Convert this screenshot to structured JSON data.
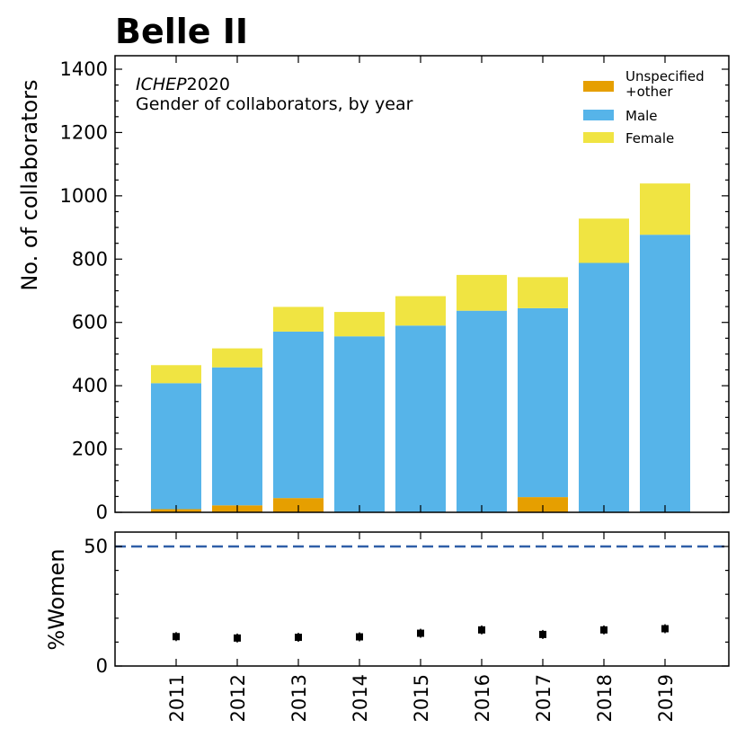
{
  "chart_data": [
    {
      "type": "bar",
      "stacked": true,
      "title": "Belle II",
      "annotation_italic": "ICHEP",
      "annotation_year": "2020",
      "subtitle": "Gender of collaborators, by year",
      "xlabel": "",
      "ylabel": "No. of collaborators",
      "ylim": [
        0,
        1450
      ],
      "yticks": [
        "0",
        "200",
        "400",
        "600",
        "800",
        "1000",
        "1200",
        "1400"
      ],
      "categories": [
        "2011",
        "2012",
        "2013",
        "2014",
        "2015",
        "2016",
        "2017",
        "2018",
        "2019"
      ],
      "series": [
        {
          "name": "Unspecified\n+other",
          "legend_lines": [
            "Unspecified",
            "+other"
          ],
          "color": "#E69F00",
          "values": [
            10,
            22,
            45,
            0,
            0,
            0,
            48,
            0,
            0
          ]
        },
        {
          "name": "Male",
          "legend_lines": [
            "Male"
          ],
          "color": "#56B4E9",
          "values": [
            398,
            436,
            526,
            556,
            590,
            637,
            597,
            788,
            877
          ]
        },
        {
          "name": "Female",
          "legend_lines": [
            "Female"
          ],
          "color": "#F0E442",
          "values": [
            57,
            60,
            78,
            77,
            93,
            113,
            98,
            140,
            162
          ]
        }
      ],
      "legend_order": [
        0,
        1,
        2
      ],
      "legend_position": "top-right"
    },
    {
      "type": "scatter",
      "ylabel": "%Women",
      "ylim": [
        0,
        55
      ],
      "yticks": [
        "0",
        "50"
      ],
      "reference_line": {
        "value": 50,
        "style": "dashed",
        "color": "#2F5FA8"
      },
      "x": [
        "2011",
        "2012",
        "2013",
        "2014",
        "2015",
        "2016",
        "2017",
        "2018",
        "2019"
      ],
      "values": [
        12.3,
        11.7,
        12.0,
        12.2,
        13.7,
        15.1,
        13.2,
        15.1,
        15.6
      ],
      "marker_color": "#000000"
    }
  ]
}
